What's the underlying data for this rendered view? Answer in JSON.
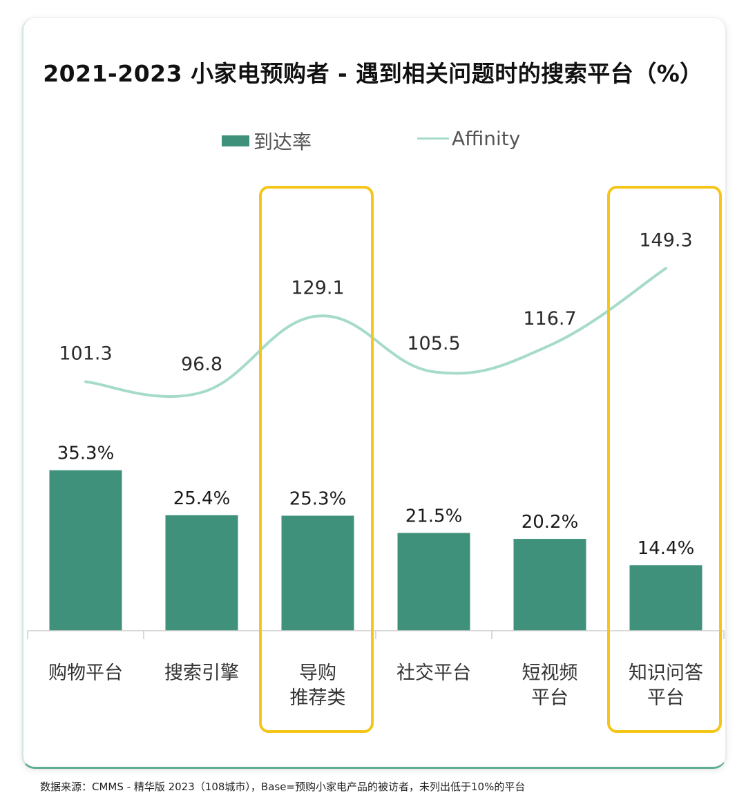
{
  "footnote": "数据来源：CMMS - 精华版 2023（108城市），Base=预购小家电产品的被访者，未列出低于10%的平台",
  "colors": {
    "bar": "#3f917c",
    "line": "#a6dbcc",
    "highlight": "#f5c518",
    "axis": "#cccccc"
  },
  "chart_data": {
    "type": "bar",
    "title": "2021-2023 小家电预购者 - 遇到相关问题时的搜索平台（%）",
    "categories": [
      [
        "购物平台"
      ],
      [
        "搜索引擎"
      ],
      [
        "导购",
        "推荐类"
      ],
      [
        "社交平台"
      ],
      [
        "短视频",
        "平台"
      ],
      [
        "知识问答",
        "平台"
      ]
    ],
    "series": [
      {
        "name": "到达率",
        "kind": "bar",
        "values": [
          35.3,
          25.4,
          25.3,
          21.5,
          20.2,
          14.4
        ],
        "labels": [
          "35.3%",
          "25.4%",
          "25.3%",
          "21.5%",
          "20.2%",
          "14.4%"
        ]
      },
      {
        "name": "Affinity",
        "kind": "line",
        "values": [
          101.3,
          96.8,
          129.1,
          105.5,
          116.7,
          149.3
        ],
        "labels": [
          "101.3",
          "96.8",
          "129.1",
          "105.5",
          "116.7",
          "149.3"
        ]
      }
    ],
    "highlighted_categories": [
      2,
      5
    ],
    "legend_position": "top-center",
    "grid": false
  }
}
